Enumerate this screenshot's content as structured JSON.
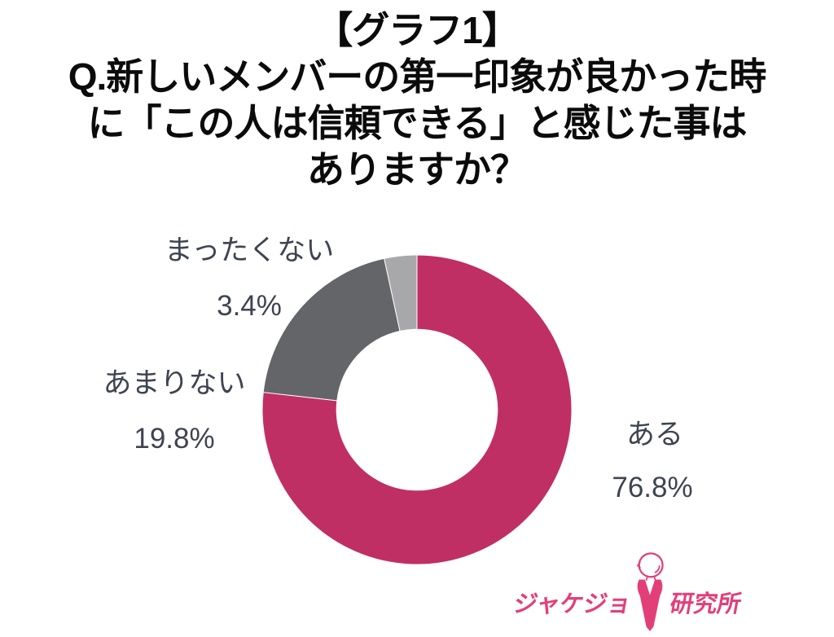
{
  "title": {
    "lines": [
      "【グラフ1】",
      "Q.新しいメンバーの第一印象が良かった時",
      "に「この人は信頼できる」と感じた事は",
      "ありますか？"
    ]
  },
  "chart_data": {
    "type": "pie",
    "subtype": "donut",
    "title": "【グラフ1】Q.新しいメンバーの第一印象が良かった時に「この人は信頼できる」と感じた事はありますか？",
    "categories": [
      "ある",
      "あまりない",
      "まったくない"
    ],
    "values": [
      76.8,
      19.8,
      3.4
    ],
    "series": [
      {
        "name": "ある",
        "value": 76.8,
        "color": "#c02f63"
      },
      {
        "name": "あまりない",
        "value": 19.8,
        "color": "#636569"
      },
      {
        "name": "まったくない",
        "value": 3.4,
        "color": "#a8a8aa"
      }
    ],
    "value_suffix": "%",
    "start_angle_deg": 0,
    "direction": "clockwise",
    "inner_radius_ratio": 0.52,
    "legend_position": "outside-callouts",
    "grid": false
  },
  "callouts": {
    "mattakunai": {
      "label": "まったくない",
      "pct": "3.4%"
    },
    "amarinai": {
      "label": "あまりない",
      "pct": "19.8%"
    },
    "aru": {
      "label": "ある",
      "pct": "76.8%"
    }
  },
  "logo": {
    "left_text": "ジャケジョ",
    "right_text": "研究所",
    "figure": "woman-in-suit-icon",
    "color": "#e23f79"
  },
  "colors": {
    "accent": "#c02f63",
    "dark_gray": "#636569",
    "light_gray": "#a8a8aa",
    "label_text": "#3e4450",
    "title_text": "#0b0b0b",
    "logo_pink": "#e23f79",
    "background": "#ffffff"
  }
}
